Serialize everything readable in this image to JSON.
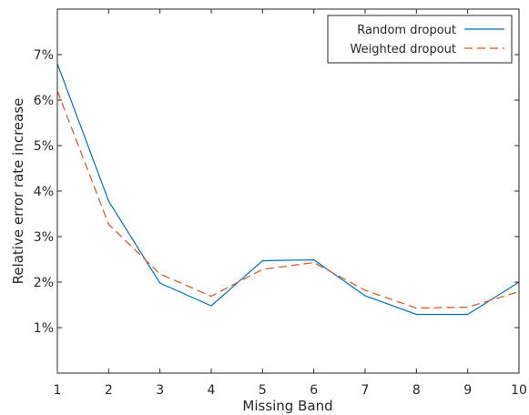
{
  "chart_data": {
    "type": "line",
    "title": "",
    "xlabel": "Missing Band",
    "ylabel": "Relative error rate increase",
    "x": [
      1,
      2,
      3,
      4,
      5,
      6,
      7,
      8,
      9,
      10
    ],
    "xlim": [
      1,
      10
    ],
    "ylim": [
      0,
      8
    ],
    "x_ticks": [
      "1",
      "2",
      "3",
      "4",
      "5",
      "6",
      "7",
      "8",
      "9",
      "10"
    ],
    "y_ticks": [
      {
        "value": 1,
        "label": "1%"
      },
      {
        "value": 2,
        "label": "2%"
      },
      {
        "value": 3,
        "label": "3%"
      },
      {
        "value": 4,
        "label": "4%"
      },
      {
        "value": 5,
        "label": "5%"
      },
      {
        "value": 6,
        "label": "6%"
      },
      {
        "value": 7,
        "label": "7%"
      }
    ],
    "grid": false,
    "legend_position": "top-right",
    "series": [
      {
        "name": "Random dropout",
        "color": "#0072BD",
        "style": "solid",
        "values": [
          6.8,
          3.78,
          1.98,
          1.48,
          2.47,
          2.49,
          1.7,
          1.29,
          1.29,
          2.0
        ]
      },
      {
        "name": "Weighted dropout",
        "color": "#D95319",
        "style": "dashed",
        "values": [
          6.2,
          3.27,
          2.18,
          1.69,
          2.28,
          2.43,
          1.82,
          1.43,
          1.45,
          1.79
        ]
      }
    ]
  }
}
